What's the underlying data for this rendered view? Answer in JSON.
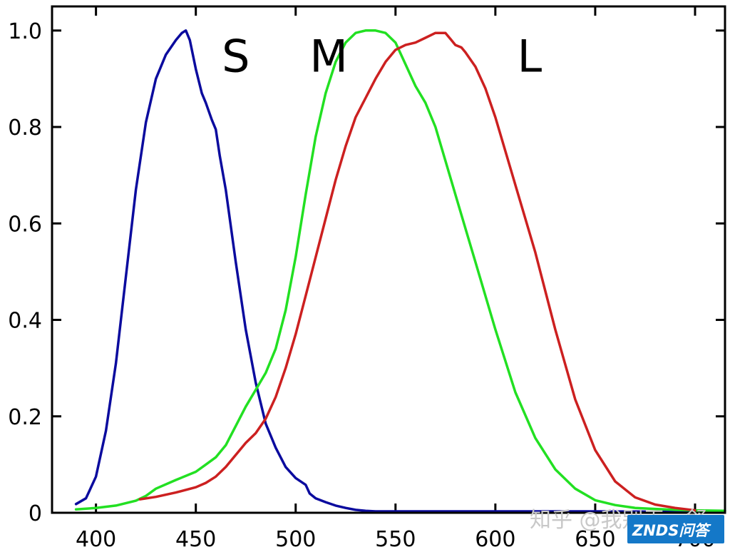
{
  "chart_data": {
    "type": "line",
    "title": "",
    "xlabel": "",
    "ylabel": "",
    "xlim": [
      378,
      715
    ],
    "ylim": [
      0,
      1.05
    ],
    "x_ticks": [
      400,
      450,
      500,
      550,
      600,
      650,
      700
    ],
    "x_tick_labels": [
      "400",
      "450",
      "500",
      "550",
      "600",
      "650",
      "700"
    ],
    "y_ticks": [
      0,
      0.2,
      0.4,
      0.6,
      0.8,
      1.0
    ],
    "y_tick_labels": [
      "0",
      "0.2",
      "0.4",
      "0.6",
      "0.8",
      "1.0"
    ],
    "grid": false,
    "legend": "none",
    "series": [
      {
        "name": "S",
        "color": "#0b0b9e",
        "label_at": [
          463,
          0.915
        ],
        "x": [
          390,
          395,
          400,
          405,
          410,
          415,
          420,
          425,
          430,
          435,
          440,
          443,
          445,
          447,
          450,
          453,
          455,
          458,
          460,
          462,
          465,
          470,
          475,
          480,
          485,
          490,
          495,
          500,
          505,
          507,
          510,
          515,
          520,
          525,
          530,
          535,
          540,
          550,
          600,
          650,
          700
        ],
        "y": [
          0.018,
          0.03,
          0.075,
          0.17,
          0.31,
          0.49,
          0.67,
          0.81,
          0.9,
          0.95,
          0.98,
          0.995,
          1.0,
          0.98,
          0.92,
          0.87,
          0.85,
          0.815,
          0.795,
          0.74,
          0.67,
          0.52,
          0.38,
          0.27,
          0.185,
          0.135,
          0.095,
          0.072,
          0.058,
          0.04,
          0.03,
          0.022,
          0.015,
          0.01,
          0.006,
          0.004,
          0.003,
          0.003,
          0.003,
          0.003,
          0.002
        ]
      },
      {
        "name": "M",
        "color": "#22e022",
        "label_at": [
          507,
          0.915
        ],
        "x": [
          390,
          400,
          410,
          420,
          425,
          430,
          440,
          450,
          455,
          460,
          465,
          470,
          475,
          480,
          485,
          490,
          495,
          500,
          505,
          510,
          515,
          520,
          525,
          530,
          535,
          540,
          545,
          550,
          555,
          560,
          565,
          570,
          575,
          580,
          585,
          590,
          600,
          610,
          620,
          630,
          640,
          650,
          660,
          670,
          680,
          690,
          700,
          715
        ],
        "y": [
          0.007,
          0.01,
          0.015,
          0.025,
          0.035,
          0.05,
          0.068,
          0.085,
          0.1,
          0.115,
          0.14,
          0.18,
          0.22,
          0.255,
          0.29,
          0.34,
          0.42,
          0.53,
          0.66,
          0.78,
          0.87,
          0.935,
          0.975,
          0.995,
          1.0,
          1.0,
          0.995,
          0.975,
          0.93,
          0.885,
          0.85,
          0.8,
          0.73,
          0.66,
          0.59,
          0.52,
          0.38,
          0.25,
          0.155,
          0.09,
          0.05,
          0.026,
          0.016,
          0.01,
          0.008,
          0.006,
          0.005,
          0.004
        ]
      },
      {
        "name": "L",
        "color": "#cc2020",
        "label_at": [
          611,
          0.915
        ],
        "x": [
          422,
          430,
          440,
          450,
          455,
          460,
          465,
          470,
          475,
          480,
          485,
          490,
          495,
          500,
          505,
          510,
          515,
          520,
          525,
          530,
          535,
          540,
          545,
          550,
          555,
          560,
          565,
          570,
          575,
          578,
          580,
          583,
          585,
          590,
          595,
          600,
          605,
          610,
          615,
          620,
          625,
          630,
          640,
          650,
          660,
          670,
          680,
          690,
          700
        ],
        "y": [
          0.028,
          0.033,
          0.042,
          0.053,
          0.062,
          0.075,
          0.095,
          0.12,
          0.145,
          0.165,
          0.195,
          0.24,
          0.3,
          0.37,
          0.45,
          0.53,
          0.61,
          0.69,
          0.76,
          0.82,
          0.86,
          0.9,
          0.935,
          0.96,
          0.97,
          0.975,
          0.985,
          0.995,
          0.995,
          0.98,
          0.97,
          0.965,
          0.955,
          0.925,
          0.88,
          0.82,
          0.75,
          0.68,
          0.61,
          0.54,
          0.46,
          0.38,
          0.235,
          0.13,
          0.065,
          0.032,
          0.017,
          0.01,
          0.005
        ]
      }
    ]
  },
  "watermark": {
    "text": "知乎 @我别无…舒",
    "badge_text": "ZNDS问答",
    "badge_color": "#1478c8"
  }
}
